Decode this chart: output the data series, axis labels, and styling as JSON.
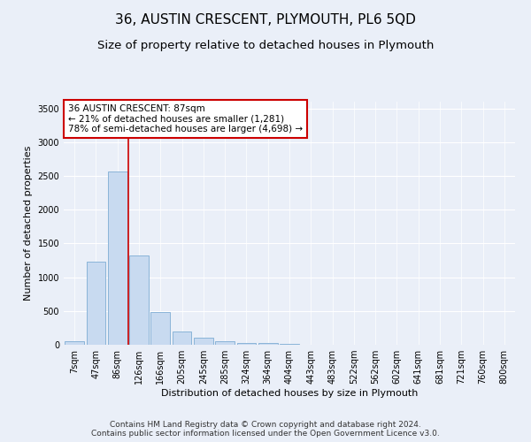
{
  "title": "36, AUSTIN CRESCENT, PLYMOUTH, PL6 5QD",
  "subtitle": "Size of property relative to detached houses in Plymouth",
  "xlabel": "Distribution of detached houses by size in Plymouth",
  "ylabel": "Number of detached properties",
  "categories": [
    "7sqm",
    "47sqm",
    "86sqm",
    "126sqm",
    "166sqm",
    "205sqm",
    "245sqm",
    "285sqm",
    "324sqm",
    "364sqm",
    "404sqm",
    "443sqm",
    "483sqm",
    "522sqm",
    "562sqm",
    "602sqm",
    "641sqm",
    "681sqm",
    "721sqm",
    "760sqm",
    "800sqm"
  ],
  "values": [
    50,
    1230,
    2560,
    1320,
    490,
    190,
    110,
    50,
    30,
    20,
    10,
    5,
    3,
    2,
    1,
    1,
    0,
    0,
    0,
    0,
    0
  ],
  "bar_color": "#c8daf0",
  "bar_edge_color": "#8ab4d8",
  "red_line_x": 2.5,
  "annotation_title": "36 AUSTIN CRESCENT: 87sqm",
  "annotation_line1": "← 21% of detached houses are smaller (1,281)",
  "annotation_line2": "78% of semi-detached houses are larger (4,698) →",
  "annotation_box_color": "#ffffff",
  "annotation_box_edge": "#cc0000",
  "red_line_color": "#cc0000",
  "ylim": [
    0,
    3600
  ],
  "yticks": [
    0,
    500,
    1000,
    1500,
    2000,
    2500,
    3000,
    3500
  ],
  "footer_line1": "Contains HM Land Registry data © Crown copyright and database right 2024.",
  "footer_line2": "Contains public sector information licensed under the Open Government Licence v3.0.",
  "background_color": "#eaeff8",
  "plot_bg_color": "#eaeff8",
  "grid_color": "#ffffff",
  "title_fontsize": 11,
  "subtitle_fontsize": 9.5,
  "axis_label_fontsize": 8,
  "tick_fontsize": 7,
  "annotation_fontsize": 7.5,
  "footer_fontsize": 6.5
}
